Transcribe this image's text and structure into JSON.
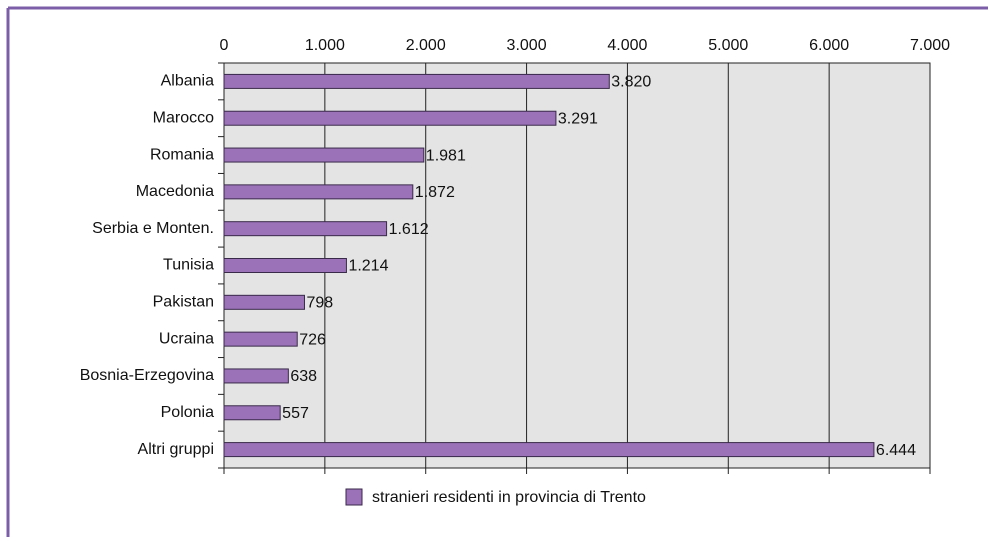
{
  "chart_data": {
    "type": "bar",
    "categories": [
      "Albania",
      "Marocco",
      "Romania",
      "Macedonia",
      "Serbia e Monten.",
      "Tunisia",
      "Pakistan",
      "Ucraina",
      "Bosnia-Erzegovina",
      "Polonia",
      "Altri gruppi"
    ],
    "series": [
      {
        "name": "stranieri residenti in provincia di Trento",
        "color": "#9b72b8",
        "values": [
          3820,
          3291,
          1981,
          1872,
          1612,
          1214,
          798,
          726,
          638,
          557,
          6444
        ],
        "value_labels": [
          "3.820",
          "3.291",
          "1.981",
          "1.872",
          "1.612",
          "1.214",
          "798",
          "726",
          "638",
          "557",
          "6.444"
        ]
      }
    ],
    "xlim": [
      0,
      7000
    ],
    "xticks": [
      0,
      {
        "value": 1000,
        "label": "1.000"
      },
      {
        "value": 2000,
        "label": "2.000"
      },
      {
        "value": 3000,
        "label": "3.000"
      },
      {
        "value": 4000,
        "label": "4.000"
      },
      {
        "value": 5000,
        "label": "5.000"
      },
      {
        "value": 6000,
        "label": "6.000"
      },
      {
        "value": 7000,
        "label": "7.000"
      }
    ],
    "grid": true,
    "legend": "bottom"
  }
}
